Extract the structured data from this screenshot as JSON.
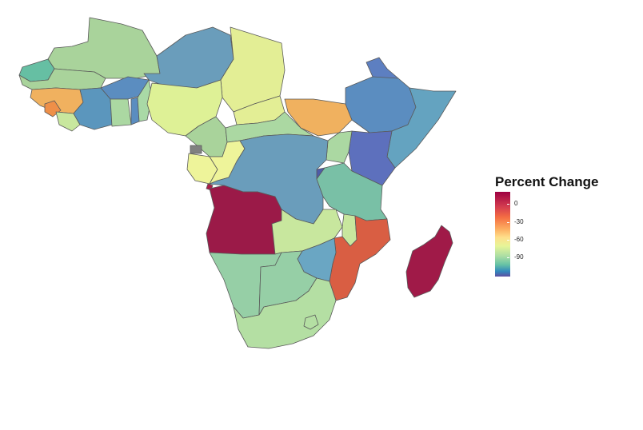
{
  "legend": {
    "title": "Percent Change",
    "ticks": [
      "0",
      "-30",
      "-60",
      "-90"
    ]
  },
  "scale": {
    "domain": [
      -90,
      10
    ],
    "colors": {
      "high": "#9e0142",
      "orange_red": "#d53e4f",
      "orange": "#f46d43",
      "light_orange": "#fdae61",
      "yellow": "#fee08b",
      "light_yellow": "#e6f598",
      "light_green": "#abdda4",
      "teal": "#66c2a5",
      "blue": "#3288bd",
      "low": "#5e4fa2",
      "no_data": "#808080"
    }
  }
}
